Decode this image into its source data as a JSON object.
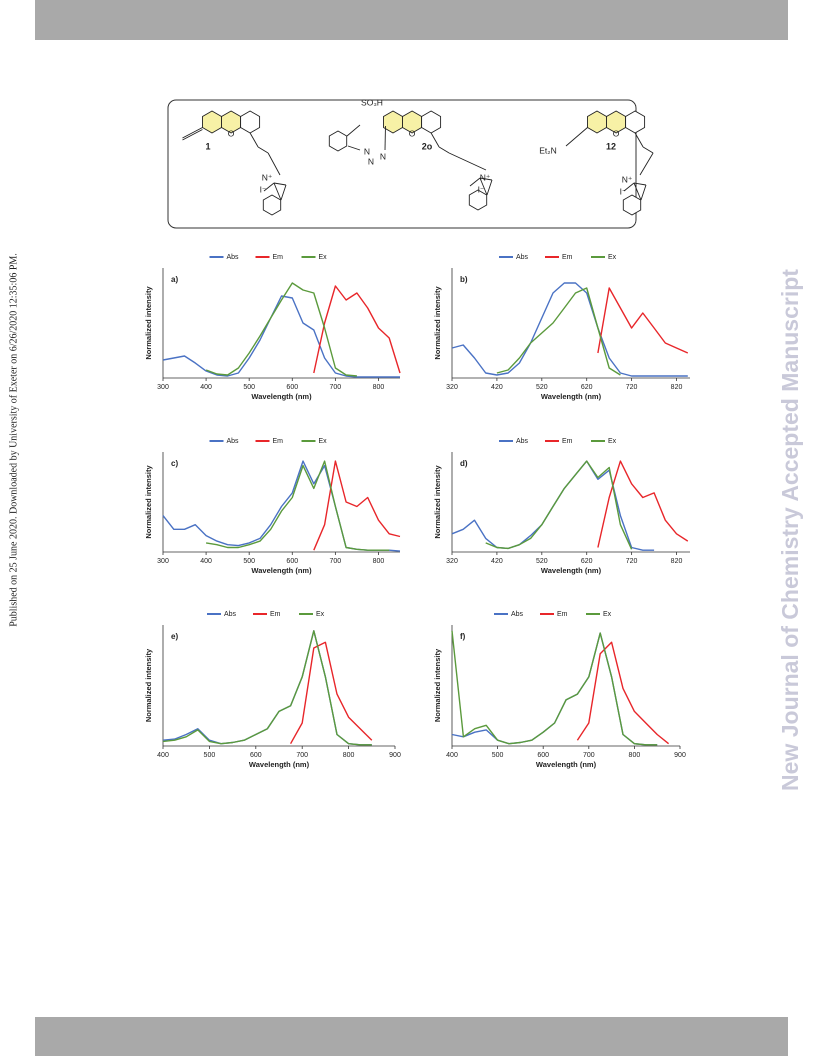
{
  "sidebar": "Published on 25 June 2020. Downloaded by University of Exeter on 6/26/2020 12:35:06 PM.",
  "watermark": "New Journal of Chemistry Accepted Manuscript",
  "structures": [
    {
      "label": "1",
      "atoms": [
        "O",
        "N⁺",
        "I⁻"
      ]
    },
    {
      "label": "2o",
      "atoms": [
        "O",
        "N⁺",
        "I⁻",
        "SO₃H",
        "N",
        "N",
        "N"
      ]
    },
    {
      "label": "12",
      "atoms": [
        "O",
        "N⁺",
        "I⁻",
        "Et₂N"
      ]
    }
  ],
  "chart_data": [
    {
      "type": "line",
      "title": "a)",
      "x_label": "Wavelength (nm)",
      "y_label": "Normalized intensity",
      "xlim": [
        300,
        850
      ],
      "xticks": [
        300,
        400,
        500,
        600,
        700,
        800
      ],
      "ylim": [
        0,
        1.1
      ],
      "x": [
        300,
        325,
        350,
        375,
        400,
        425,
        450,
        475,
        500,
        525,
        550,
        575,
        600,
        625,
        650,
        675,
        700,
        725,
        750,
        775,
        800,
        825,
        850
      ],
      "series": [
        {
          "name": "Abs",
          "color": "#4a72c4",
          "values": [
            0.18,
            0.2,
            0.22,
            0.15,
            0.07,
            0.03,
            0.02,
            0.05,
            0.2,
            0.38,
            0.6,
            0.82,
            0.8,
            0.55,
            0.48,
            0.2,
            0.05,
            0.02,
            0.01,
            0.01,
            0.01,
            0.01,
            0.01
          ]
        },
        {
          "name": "Em",
          "color": "#e8262a",
          "values": [
            null,
            null,
            null,
            null,
            null,
            null,
            null,
            null,
            null,
            null,
            null,
            null,
            null,
            null,
            0.05,
            0.55,
            0.92,
            0.78,
            0.85,
            0.7,
            0.5,
            0.4,
            0.05
          ]
        },
        {
          "name": "Ex",
          "color": "#5b9a3c",
          "values": [
            null,
            null,
            null,
            null,
            0.08,
            0.04,
            0.03,
            0.1,
            0.25,
            0.42,
            0.6,
            0.78,
            0.95,
            0.88,
            0.85,
            0.5,
            0.1,
            0.03,
            0.02,
            null,
            null,
            null,
            null
          ]
        }
      ]
    },
    {
      "type": "line",
      "title": "b)",
      "x_label": "Wavelength (nm)",
      "y_label": "Normalized intensity",
      "xlim": [
        320,
        850
      ],
      "xticks": [
        320,
        420,
        520,
        620,
        720,
        820
      ],
      "ylim": [
        0,
        1.1
      ],
      "x": [
        320,
        345,
        370,
        395,
        420,
        445,
        470,
        495,
        520,
        545,
        570,
        595,
        620,
        645,
        670,
        695,
        720,
        745,
        770,
        795,
        820,
        845
      ],
      "series": [
        {
          "name": "Abs",
          "color": "#4a72c4",
          "values": [
            0.3,
            0.33,
            0.2,
            0.05,
            0.03,
            0.05,
            0.15,
            0.35,
            0.6,
            0.85,
            0.95,
            0.95,
            0.85,
            0.5,
            0.2,
            0.05,
            0.02,
            0.02,
            0.02,
            0.02,
            0.02,
            0.02
          ]
        },
        {
          "name": "Em",
          "color": "#e8262a",
          "values": [
            null,
            null,
            null,
            null,
            null,
            null,
            null,
            null,
            null,
            null,
            null,
            null,
            null,
            0.25,
            0.9,
            0.7,
            0.5,
            0.65,
            0.5,
            0.35,
            0.3,
            0.25
          ]
        },
        {
          "name": "Ex",
          "color": "#5b9a3c",
          "values": [
            null,
            null,
            null,
            null,
            0.05,
            0.08,
            0.2,
            0.35,
            0.45,
            0.55,
            0.7,
            0.85,
            0.9,
            0.5,
            0.1,
            0.03,
            null,
            null,
            null,
            null,
            null,
            null
          ]
        }
      ]
    },
    {
      "type": "line",
      "title": "c)",
      "x_label": "Wavelength (nm)",
      "y_label": "Normalized intensity",
      "xlim": [
        300,
        850
      ],
      "xticks": [
        300,
        400,
        500,
        600,
        700,
        800
      ],
      "ylim": [
        0,
        1.1
      ],
      "x": [
        300,
        325,
        350,
        375,
        400,
        425,
        450,
        475,
        500,
        525,
        550,
        575,
        600,
        625,
        650,
        675,
        700,
        725,
        750,
        775,
        800,
        825,
        850
      ],
      "series": [
        {
          "name": "Abs",
          "color": "#4a72c4",
          "values": [
            0.4,
            0.25,
            0.25,
            0.3,
            0.18,
            0.12,
            0.08,
            0.07,
            0.1,
            0.15,
            0.3,
            0.5,
            0.65,
            1.0,
            0.75,
            0.95,
            0.5,
            0.05,
            0.03,
            0.02,
            0.02,
            0.02,
            0.01
          ]
        },
        {
          "name": "Em",
          "color": "#e8262a",
          "values": [
            null,
            null,
            null,
            null,
            null,
            null,
            null,
            null,
            null,
            null,
            null,
            null,
            null,
            null,
            0.02,
            0.3,
            1.0,
            0.55,
            0.5,
            0.6,
            0.35,
            0.2,
            0.17
          ]
        },
        {
          "name": "Ex",
          "color": "#5b9a3c",
          "values": [
            null,
            null,
            null,
            null,
            0.1,
            0.08,
            0.05,
            0.05,
            0.08,
            0.12,
            0.25,
            0.45,
            0.6,
            0.95,
            0.7,
            1.0,
            0.5,
            0.05,
            0.03,
            0.02,
            0.02,
            0.02,
            null
          ]
        }
      ]
    },
    {
      "type": "line",
      "title": "d)",
      "x_label": "Wavelength (nm)",
      "y_label": "Normalized intensity",
      "xlim": [
        320,
        850
      ],
      "xticks": [
        320,
        420,
        520,
        620,
        720,
        820
      ],
      "ylim": [
        0,
        1.1
      ],
      "x": [
        320,
        345,
        370,
        395,
        420,
        445,
        470,
        495,
        520,
        545,
        570,
        595,
        620,
        645,
        670,
        695,
        720,
        745,
        770,
        795,
        820,
        845
      ],
      "series": [
        {
          "name": "Abs",
          "color": "#4a72c4",
          "values": [
            0.2,
            0.25,
            0.35,
            0.15,
            0.05,
            0.04,
            0.08,
            0.18,
            0.3,
            0.5,
            0.7,
            0.85,
            1.0,
            0.8,
            0.9,
            0.4,
            0.05,
            0.02,
            0.02,
            null,
            null,
            null
          ]
        },
        {
          "name": "Em",
          "color": "#e8262a",
          "values": [
            null,
            null,
            null,
            null,
            null,
            null,
            null,
            null,
            null,
            null,
            null,
            null,
            null,
            0.05,
            0.6,
            1.0,
            0.75,
            0.6,
            0.65,
            0.35,
            0.2,
            0.12
          ]
        },
        {
          "name": "Ex",
          "color": "#5b9a3c",
          "values": [
            null,
            null,
            null,
            0.1,
            0.05,
            0.04,
            0.08,
            0.15,
            0.3,
            0.5,
            0.7,
            0.85,
            1.0,
            0.82,
            0.93,
            0.3,
            0.03,
            null,
            null,
            null,
            null,
            null
          ]
        }
      ]
    },
    {
      "type": "line",
      "title": "e)",
      "x_label": "Wavelength (nm)",
      "y_label": "Normalized intensity",
      "xlim": [
        400,
        900
      ],
      "xticks": [
        400,
        500,
        600,
        700,
        800,
        900
      ],
      "ylim": [
        0,
        1.05
      ],
      "x": [
        400,
        425,
        450,
        475,
        500,
        525,
        550,
        575,
        600,
        625,
        650,
        675,
        700,
        725,
        750,
        775,
        800,
        825,
        850,
        875,
        900
      ],
      "series": [
        {
          "name": "Abs",
          "color": "#4a72c4",
          "values": [
            0.05,
            0.06,
            0.1,
            0.15,
            0.05,
            0.02,
            0.03,
            0.05,
            0.1,
            0.15,
            0.3,
            0.35,
            0.6,
            1.0,
            0.6,
            0.1,
            0.02,
            0.01,
            0.01,
            null,
            null
          ]
        },
        {
          "name": "Em",
          "color": "#e8262a",
          "values": [
            null,
            null,
            null,
            null,
            null,
            null,
            null,
            null,
            null,
            null,
            null,
            0.02,
            0.2,
            0.85,
            0.9,
            0.45,
            0.25,
            0.15,
            0.05,
            null,
            null
          ]
        },
        {
          "name": "Ex",
          "color": "#5b9a3c",
          "values": [
            0.04,
            0.05,
            0.08,
            0.14,
            0.04,
            0.02,
            0.03,
            0.05,
            0.1,
            0.15,
            0.3,
            0.35,
            0.6,
            1.0,
            0.6,
            0.1,
            0.02,
            0.01,
            0.01,
            null,
            null
          ]
        }
      ]
    },
    {
      "type": "line",
      "title": "f)",
      "x_label": "Wavelength (nm)",
      "y_label": "Normalized intensity",
      "xlim": [
        400,
        900
      ],
      "xticks": [
        400,
        500,
        600,
        700,
        800,
        900
      ],
      "ylim": [
        0,
        1.05
      ],
      "x": [
        400,
        425,
        450,
        475,
        500,
        525,
        550,
        575,
        600,
        625,
        650,
        675,
        700,
        725,
        750,
        775,
        800,
        825,
        850,
        875,
        900
      ],
      "series": [
        {
          "name": "Abs",
          "color": "#4a72c4",
          "values": [
            0.1,
            0.08,
            0.12,
            0.14,
            0.05,
            0.02,
            0.03,
            0.05,
            0.12,
            0.2,
            0.4,
            0.45,
            0.6,
            0.98,
            0.6,
            0.1,
            0.02,
            0.01,
            0.01,
            null,
            null
          ]
        },
        {
          "name": "Em",
          "color": "#e8262a",
          "values": [
            null,
            null,
            null,
            null,
            null,
            null,
            null,
            null,
            null,
            null,
            null,
            0.05,
            0.2,
            0.8,
            0.9,
            0.5,
            0.3,
            0.2,
            0.1,
            0.02,
            null
          ]
        },
        {
          "name": "Ex",
          "color": "#5b9a3c",
          "values": [
            1.0,
            0.08,
            0.15,
            0.18,
            0.05,
            0.02,
            0.03,
            0.05,
            0.12,
            0.2,
            0.4,
            0.45,
            0.6,
            0.98,
            0.6,
            0.1,
            0.02,
            0.01,
            0.01,
            null,
            null
          ]
        }
      ]
    }
  ]
}
